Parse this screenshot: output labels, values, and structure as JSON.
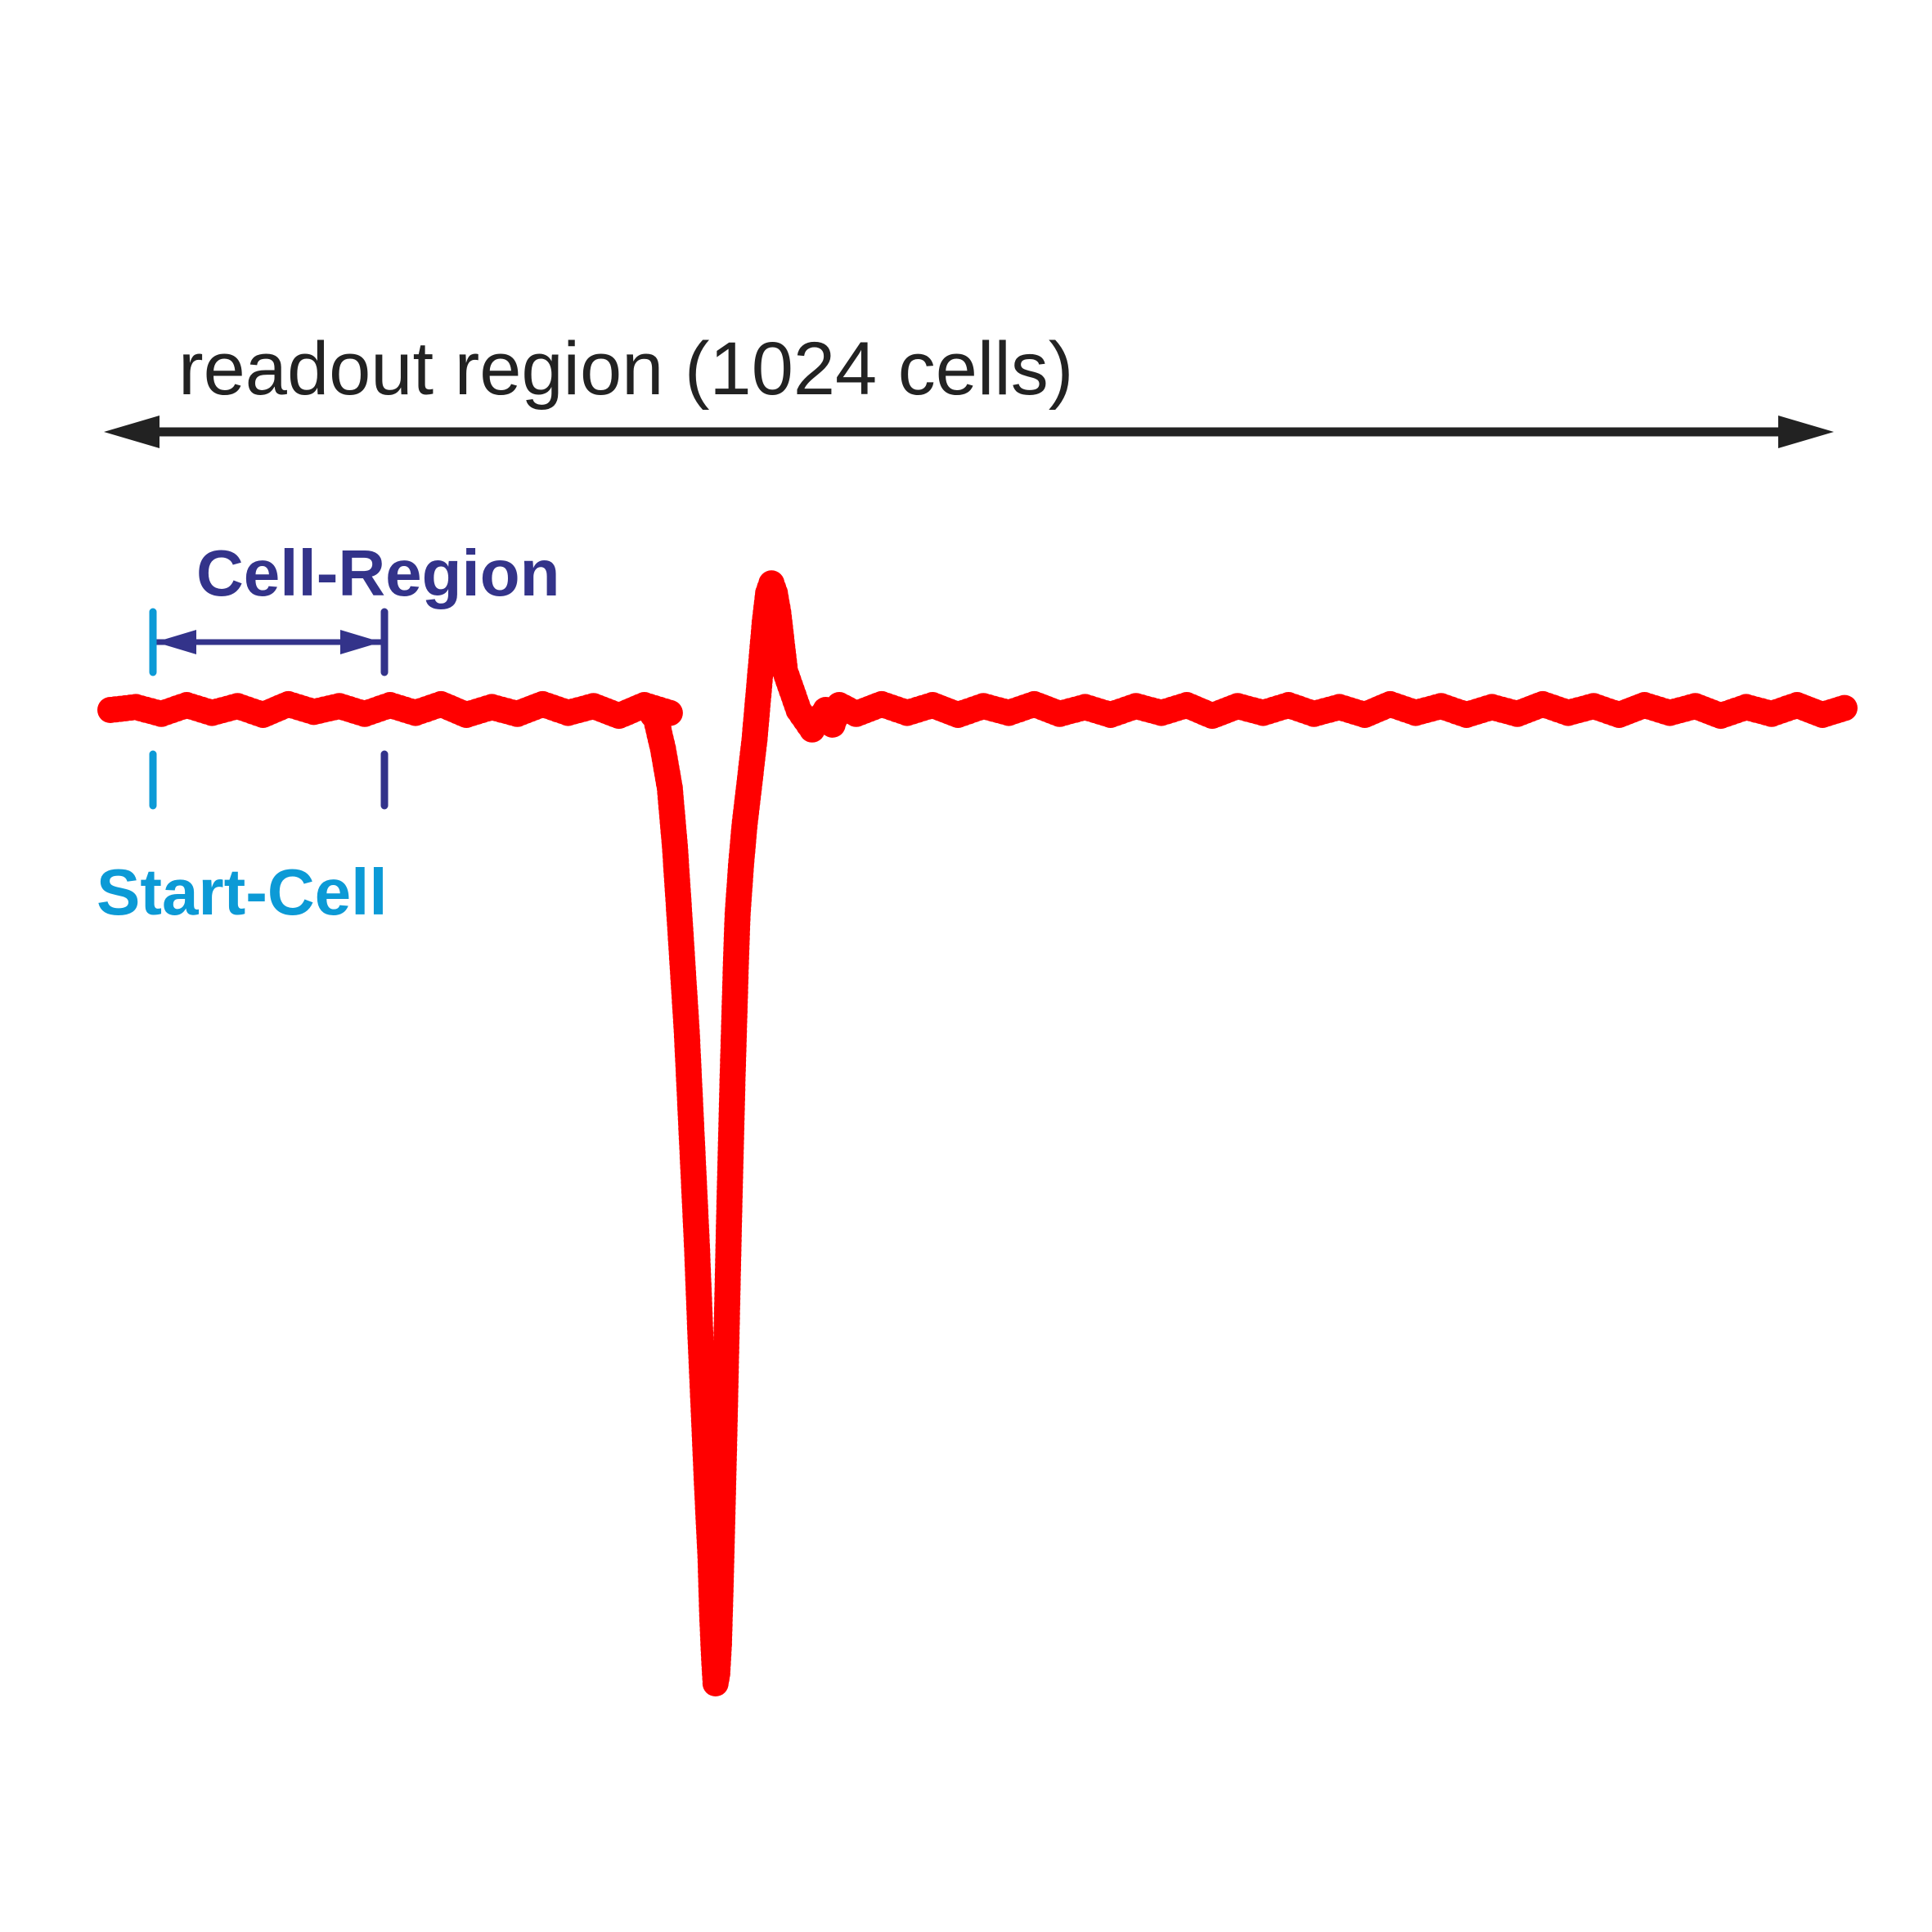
{
  "labels": {
    "readout_region": "readout region (1024 cells)",
    "cell_region": "Cell-Region",
    "start_cell": "Start-Cell"
  },
  "colors": {
    "readout_arrow": "#222222",
    "cell_region": "#33338a",
    "start_cell": "#0c9ad6",
    "waveform": "#ff0000",
    "background": "#ffffff"
  },
  "chart_data": {
    "type": "scatter",
    "xlabel": "",
    "ylabel": "",
    "cells": 1024,
    "baseline_level": 0,
    "pulse_min": -1.0,
    "overshoot_max": 0.13,
    "samples": [
      [
        0,
        0.0
      ],
      [
        15,
        0.003
      ],
      [
        30,
        -0.004
      ],
      [
        45,
        0.005
      ],
      [
        60,
        -0.003
      ],
      [
        75,
        0.004
      ],
      [
        90,
        -0.005
      ],
      [
        105,
        0.006
      ],
      [
        120,
        -0.002
      ],
      [
        135,
        0.004
      ],
      [
        150,
        -0.004
      ],
      [
        165,
        0.005
      ],
      [
        180,
        -0.003
      ],
      [
        195,
        0.006
      ],
      [
        210,
        -0.005
      ],
      [
        225,
        0.003
      ],
      [
        240,
        -0.004
      ],
      [
        255,
        0.006
      ],
      [
        270,
        -0.003
      ],
      [
        285,
        0.004
      ],
      [
        300,
        -0.006
      ],
      [
        315,
        0.005
      ],
      [
        330,
        -0.003
      ],
      [
        318,
        0.0
      ],
      [
        322,
        -0.01
      ],
      [
        326,
        -0.04
      ],
      [
        330,
        -0.08
      ],
      [
        333,
        -0.14
      ],
      [
        336,
        -0.22
      ],
      [
        340,
        -0.33
      ],
      [
        343,
        -0.44
      ],
      [
        346,
        -0.55
      ],
      [
        348,
        -0.64
      ],
      [
        350,
        -0.72
      ],
      [
        352,
        -0.8
      ],
      [
        354,
        -0.87
      ],
      [
        355,
        -0.93
      ],
      [
        356,
        -0.97
      ],
      [
        357,
        -1.0
      ],
      [
        358,
        -0.99
      ],
      [
        359,
        -0.96
      ],
      [
        360,
        -0.9
      ],
      [
        361,
        -0.83
      ],
      [
        362,
        -0.76
      ],
      [
        363,
        -0.68
      ],
      [
        364,
        -0.6
      ],
      [
        365,
        -0.52
      ],
      [
        366,
        -0.45
      ],
      [
        367,
        -0.38
      ],
      [
        368,
        -0.32
      ],
      [
        369,
        -0.26
      ],
      [
        370,
        -0.21
      ],
      [
        372,
        -0.16
      ],
      [
        374,
        -0.12
      ],
      [
        376,
        -0.09
      ],
      [
        378,
        -0.06
      ],
      [
        380,
        -0.03
      ],
      [
        382,
        0.01
      ],
      [
        384,
        0.05
      ],
      [
        386,
        0.09
      ],
      [
        388,
        0.12
      ],
      [
        390,
        0.13
      ],
      [
        392,
        0.12
      ],
      [
        394,
        0.1
      ],
      [
        396,
        0.07
      ],
      [
        398,
        0.04
      ],
      [
        402,
        0.02
      ],
      [
        406,
        0.0
      ],
      [
        410,
        -0.01
      ],
      [
        414,
        -0.02
      ],
      [
        418,
        -0.01
      ],
      [
        422,
        0.0
      ],
      [
        426,
        -0.015
      ],
      [
        430,
        0.005
      ],
      [
        440,
        -0.004
      ],
      [
        455,
        0.006
      ],
      [
        470,
        -0.003
      ],
      [
        485,
        0.005
      ],
      [
        500,
        -0.005
      ],
      [
        515,
        0.004
      ],
      [
        530,
        -0.003
      ],
      [
        545,
        0.006
      ],
      [
        560,
        -0.004
      ],
      [
        575,
        0.003
      ],
      [
        590,
        -0.005
      ],
      [
        605,
        0.004
      ],
      [
        620,
        -0.003
      ],
      [
        635,
        0.005
      ],
      [
        650,
        -0.006
      ],
      [
        665,
        0.004
      ],
      [
        680,
        -0.003
      ],
      [
        695,
        0.005
      ],
      [
        710,
        -0.004
      ],
      [
        725,
        0.003
      ],
      [
        740,
        -0.005
      ],
      [
        755,
        0.006
      ],
      [
        770,
        -0.003
      ],
      [
        785,
        0.004
      ],
      [
        800,
        -0.005
      ],
      [
        815,
        0.003
      ],
      [
        830,
        -0.004
      ],
      [
        845,
        0.006
      ],
      [
        860,
        -0.003
      ],
      [
        875,
        0.004
      ],
      [
        890,
        -0.005
      ],
      [
        905,
        0.005
      ],
      [
        920,
        -0.003
      ],
      [
        935,
        0.004
      ],
      [
        950,
        -0.006
      ],
      [
        965,
        0.003
      ],
      [
        980,
        -0.004
      ],
      [
        995,
        0.005
      ],
      [
        1010,
        -0.005
      ],
      [
        1023,
        0.002
      ]
    ]
  }
}
